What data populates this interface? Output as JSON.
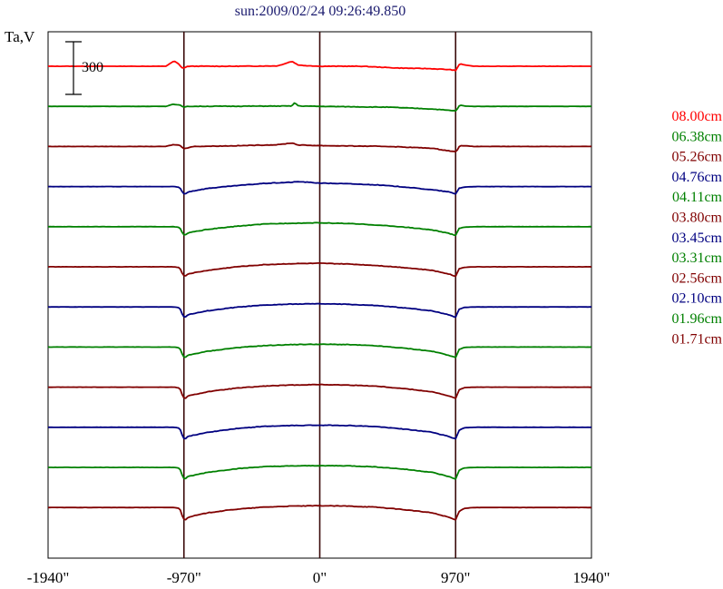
{
  "chart_data": {
    "type": "line",
    "title": "sun:2009/02/24 09:26:49.850",
    "ylabel": "Ta,V",
    "xlabel": "",
    "x_range": [
      -1940,
      1940
    ],
    "x_ticks": [
      "-1940\"",
      "-970\"",
      "0\"",
      "970\"",
      "1940\""
    ],
    "x_tick_values": [
      -1940,
      -970,
      0,
      970,
      1940
    ],
    "vertical_lines": [
      -970,
      0,
      970
    ],
    "scale_bar": {
      "label": "300",
      "value": 300
    },
    "grid": false,
    "legend_position": "right",
    "series": [
      {
        "name": "08.00cm",
        "color": "#ff0000",
        "profile": [
          [
            -1940,
            0
          ],
          [
            -1100,
            0
          ],
          [
            -1070,
            15
          ],
          [
            -1040,
            30
          ],
          [
            -1010,
            14
          ],
          [
            -985,
            -8
          ],
          [
            -970,
            -10
          ],
          [
            -940,
            0
          ],
          [
            -600,
            0
          ],
          [
            -300,
            2
          ],
          [
            -200,
            28
          ],
          [
            -150,
            6
          ],
          [
            0,
            0
          ],
          [
            300,
            0
          ],
          [
            550,
            -10
          ],
          [
            800,
            -14
          ],
          [
            940,
            -20
          ],
          [
            970,
            -25
          ],
          [
            1000,
            15
          ],
          [
            1030,
            8
          ],
          [
            1100,
            0
          ],
          [
            1940,
            0
          ]
        ]
      },
      {
        "name": "06.38cm",
        "color": "#008000",
        "profile": [
          [
            -1940,
            0
          ],
          [
            -1100,
            0
          ],
          [
            -1050,
            12
          ],
          [
            -1000,
            8
          ],
          [
            -970,
            -5
          ],
          [
            -940,
            0
          ],
          [
            -200,
            2
          ],
          [
            -180,
            20
          ],
          [
            -150,
            2
          ],
          [
            0,
            0
          ],
          [
            500,
            -5
          ],
          [
            800,
            -15
          ],
          [
            960,
            -25
          ],
          [
            975,
            -25
          ],
          [
            1000,
            8
          ],
          [
            1030,
            2
          ],
          [
            1100,
            0
          ],
          [
            1940,
            0
          ]
        ]
      },
      {
        "name": "05.26cm",
        "color": "#800000",
        "profile": [
          [
            -1940,
            0
          ],
          [
            -1100,
            0
          ],
          [
            -1050,
            10
          ],
          [
            -1000,
            8
          ],
          [
            -975,
            -12
          ],
          [
            -960,
            -10
          ],
          [
            -900,
            0
          ],
          [
            -600,
            4
          ],
          [
            -300,
            10
          ],
          [
            -200,
            20
          ],
          [
            -150,
            8
          ],
          [
            0,
            5
          ],
          [
            500,
            0
          ],
          [
            800,
            -10
          ],
          [
            950,
            -28
          ],
          [
            975,
            -30
          ],
          [
            1000,
            5
          ],
          [
            1050,
            3
          ],
          [
            1100,
            0
          ],
          [
            1940,
            0
          ]
        ]
      },
      {
        "name": "04.76cm",
        "color": "#000080",
        "profile": [
          [
            -1940,
            0
          ],
          [
            -1040,
            0
          ],
          [
            -1000,
            -5
          ],
          [
            -975,
            -40
          ],
          [
            -960,
            -42
          ],
          [
            -940,
            -30
          ],
          [
            -800,
            -10
          ],
          [
            -600,
            5
          ],
          [
            -400,
            18
          ],
          [
            -200,
            25
          ],
          [
            -150,
            28
          ],
          [
            0,
            20
          ],
          [
            200,
            16
          ],
          [
            400,
            10
          ],
          [
            600,
            -2
          ],
          [
            800,
            -18
          ],
          [
            920,
            -30
          ],
          [
            960,
            -40
          ],
          [
            975,
            -42
          ],
          [
            990,
            -10
          ],
          [
            1030,
            -3
          ],
          [
            1100,
            0
          ],
          [
            1940,
            0
          ]
        ]
      },
      {
        "name": "04.11cm",
        "color": "#008000",
        "profile": [
          [
            -1940,
            0
          ],
          [
            -1040,
            0
          ],
          [
            -1000,
            -5
          ],
          [
            -975,
            -45
          ],
          [
            -960,
            -48
          ],
          [
            -940,
            -35
          ],
          [
            -800,
            -15
          ],
          [
            -600,
            2
          ],
          [
            -400,
            15
          ],
          [
            -200,
            20
          ],
          [
            0,
            22
          ],
          [
            200,
            18
          ],
          [
            400,
            10
          ],
          [
            600,
            -2
          ],
          [
            800,
            -18
          ],
          [
            920,
            -38
          ],
          [
            960,
            -48
          ],
          [
            975,
            -50
          ],
          [
            990,
            -10
          ],
          [
            1030,
            -3
          ],
          [
            1100,
            0
          ],
          [
            1940,
            0
          ]
        ]
      },
      {
        "name": "03.80cm",
        "color": "#800000",
        "profile": [
          [
            -1940,
            0
          ],
          [
            -1040,
            0
          ],
          [
            -1000,
            -5
          ],
          [
            -975,
            -50
          ],
          [
            -960,
            -52
          ],
          [
            -940,
            -40
          ],
          [
            -800,
            -20
          ],
          [
            -600,
            0
          ],
          [
            -400,
            12
          ],
          [
            -200,
            18
          ],
          [
            0,
            20
          ],
          [
            200,
            16
          ],
          [
            400,
            8
          ],
          [
            600,
            -4
          ],
          [
            800,
            -20
          ],
          [
            920,
            -40
          ],
          [
            960,
            -52
          ],
          [
            975,
            -55
          ],
          [
            990,
            -12
          ],
          [
            1030,
            -3
          ],
          [
            1100,
            0
          ],
          [
            1940,
            0
          ]
        ]
      },
      {
        "name": "03.45cm",
        "color": "#000080",
        "profile": [
          [
            -1940,
            0
          ],
          [
            -1040,
            0
          ],
          [
            -1000,
            -5
          ],
          [
            -975,
            -55
          ],
          [
            -960,
            -58
          ],
          [
            -940,
            -44
          ],
          [
            -800,
            -22
          ],
          [
            -600,
            -2
          ],
          [
            -400,
            10
          ],
          [
            -200,
            16
          ],
          [
            0,
            18
          ],
          [
            200,
            15
          ],
          [
            400,
            8
          ],
          [
            600,
            -5
          ],
          [
            800,
            -22
          ],
          [
            920,
            -44
          ],
          [
            960,
            -56
          ],
          [
            975,
            -58
          ],
          [
            990,
            -15
          ],
          [
            1030,
            -3
          ],
          [
            1100,
            0
          ],
          [
            1940,
            0
          ]
        ]
      },
      {
        "name": "03.31cm",
        "color": "#008000",
        "profile": [
          [
            -1940,
            0
          ],
          [
            -1040,
            0
          ],
          [
            -1000,
            -5
          ],
          [
            -975,
            -55
          ],
          [
            -960,
            -60
          ],
          [
            -940,
            -46
          ],
          [
            -800,
            -24
          ],
          [
            -600,
            -4
          ],
          [
            -400,
            8
          ],
          [
            -200,
            14
          ],
          [
            0,
            16
          ],
          [
            200,
            14
          ],
          [
            400,
            7
          ],
          [
            600,
            -6
          ],
          [
            800,
            -24
          ],
          [
            920,
            -46
          ],
          [
            960,
            -58
          ],
          [
            975,
            -60
          ],
          [
            990,
            -15
          ],
          [
            1030,
            -3
          ],
          [
            1100,
            0
          ],
          [
            1940,
            0
          ]
        ]
      },
      {
        "name": "02.56cm",
        "color": "#800000",
        "profile": [
          [
            -1940,
            0
          ],
          [
            -1040,
            0
          ],
          [
            -1000,
            -5
          ],
          [
            -975,
            -60
          ],
          [
            -960,
            -64
          ],
          [
            -940,
            -50
          ],
          [
            -800,
            -26
          ],
          [
            -600,
            -6
          ],
          [
            -400,
            6
          ],
          [
            -200,
            12
          ],
          [
            0,
            15
          ],
          [
            200,
            12
          ],
          [
            400,
            6
          ],
          [
            600,
            -8
          ],
          [
            800,
            -26
          ],
          [
            920,
            -50
          ],
          [
            960,
            -62
          ],
          [
            975,
            -64
          ],
          [
            990,
            -18
          ],
          [
            1030,
            -3
          ],
          [
            1100,
            0
          ],
          [
            1940,
            0
          ]
        ]
      },
      {
        "name": "02.10cm",
        "color": "#000080",
        "profile": [
          [
            -1940,
            0
          ],
          [
            -1040,
            0
          ],
          [
            -1000,
            -5
          ],
          [
            -975,
            -62
          ],
          [
            -960,
            -66
          ],
          [
            -940,
            -52
          ],
          [
            -800,
            -28
          ],
          [
            -600,
            -8
          ],
          [
            -400,
            5
          ],
          [
            -200,
            10
          ],
          [
            0,
            12
          ],
          [
            200,
            10
          ],
          [
            400,
            4
          ],
          [
            600,
            -10
          ],
          [
            800,
            -28
          ],
          [
            920,
            -52
          ],
          [
            960,
            -64
          ],
          [
            975,
            -66
          ],
          [
            990,
            -20
          ],
          [
            1030,
            -3
          ],
          [
            1100,
            0
          ],
          [
            1940,
            0
          ]
        ]
      },
      {
        "name": "01.96cm",
        "color": "#008000",
        "profile": [
          [
            -1940,
            0
          ],
          [
            -1040,
            0
          ],
          [
            -1000,
            -5
          ],
          [
            -975,
            -62
          ],
          [
            -960,
            -66
          ],
          [
            -940,
            -52
          ],
          [
            -800,
            -28
          ],
          [
            -600,
            -8
          ],
          [
            -400,
            4
          ],
          [
            -200,
            8
          ],
          [
            0,
            10
          ],
          [
            200,
            9
          ],
          [
            400,
            3
          ],
          [
            600,
            -10
          ],
          [
            800,
            -28
          ],
          [
            920,
            -52
          ],
          [
            960,
            -64
          ],
          [
            975,
            -66
          ],
          [
            990,
            -20
          ],
          [
            1030,
            -3
          ],
          [
            1100,
            0
          ],
          [
            1940,
            0
          ]
        ]
      },
      {
        "name": "01.71cm",
        "color": "#800000",
        "profile": [
          [
            -1940,
            0
          ],
          [
            -1040,
            0
          ],
          [
            -1000,
            -5
          ],
          [
            -975,
            -65
          ],
          [
            -960,
            -70
          ],
          [
            -940,
            -55
          ],
          [
            -800,
            -30
          ],
          [
            -600,
            -10
          ],
          [
            -400,
            2
          ],
          [
            -200,
            8
          ],
          [
            0,
            10
          ],
          [
            200,
            8
          ],
          [
            400,
            2
          ],
          [
            600,
            -12
          ],
          [
            800,
            -30
          ],
          [
            920,
            -55
          ],
          [
            960,
            -68
          ],
          [
            975,
            -70
          ],
          [
            990,
            -25
          ],
          [
            1030,
            -5
          ],
          [
            1100,
            0
          ],
          [
            1940,
            0
          ]
        ]
      }
    ]
  }
}
